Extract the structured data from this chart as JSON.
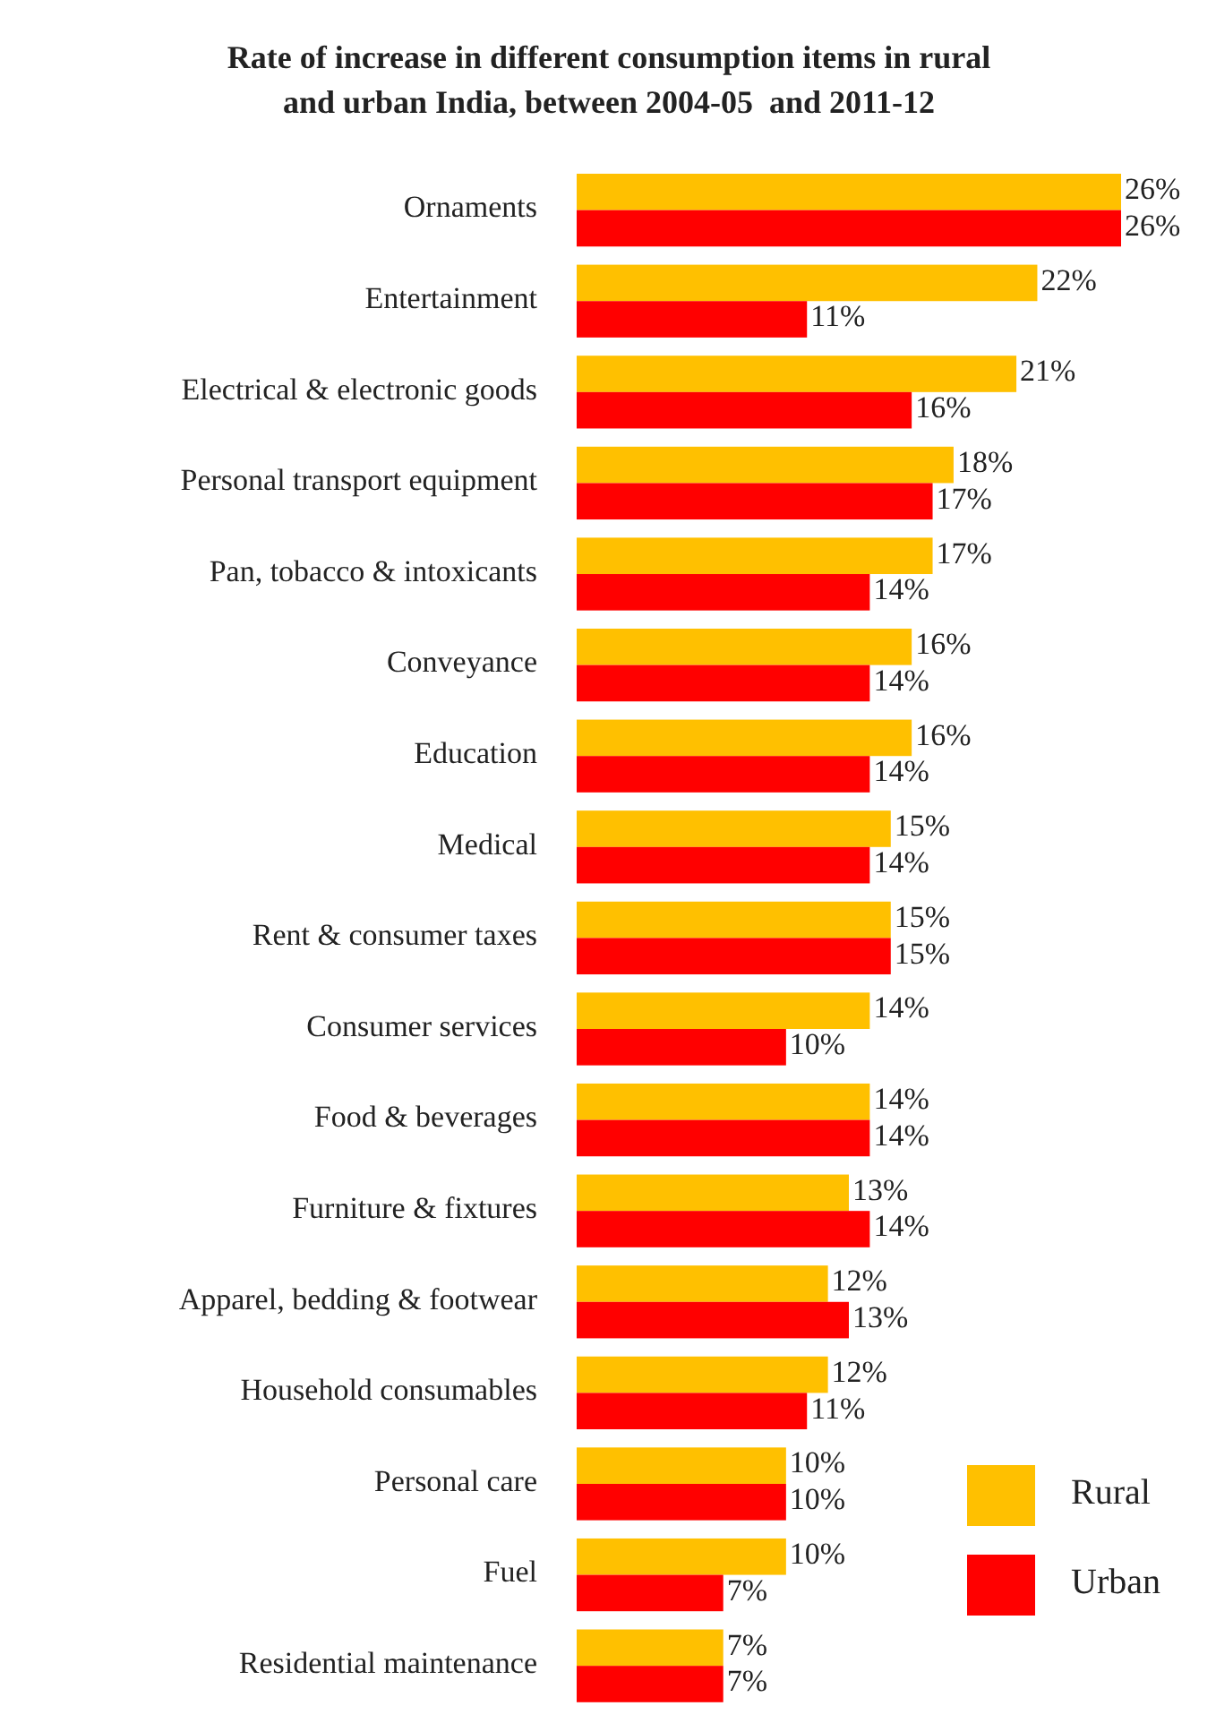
{
  "chart_data": {
    "type": "bar",
    "orientation": "horizontal",
    "title": "Rate of increase in different consumption items in rural and urban India, between 2004-05  and 2011-12",
    "categories": [
      "Ornaments",
      "Entertainment",
      "Electrical & electronic goods",
      "Personal transport equipment",
      "Pan, tobacco & intoxicants",
      "Conveyance",
      "Education",
      "Medical",
      "Rent & consumer taxes",
      "Consumer services",
      "Food & beverages",
      "Furniture & fixtures",
      "Apparel, bedding & footwear",
      "Household consumables",
      "Personal care",
      "Fuel",
      "Residential maintenance"
    ],
    "series": [
      {
        "name": "Rural",
        "color": "#ffc000",
        "values": [
          26,
          22,
          21,
          18,
          17,
          16,
          16,
          15,
          15,
          14,
          14,
          13,
          12,
          12,
          10,
          10,
          7
        ],
        "value_labels": [
          "26%",
          "22%",
          "21%",
          "18%",
          "17%",
          "16%",
          "16%",
          "15%",
          "15%",
          "14%",
          "14%",
          "13%",
          "12%",
          "12%",
          "10%",
          "10%",
          "7%"
        ]
      },
      {
        "name": "Urban",
        "color": "#ff0000",
        "values": [
          26,
          11,
          16,
          17,
          14,
          14,
          14,
          14,
          15,
          10,
          14,
          14,
          13,
          11,
          10,
          7,
          7
        ],
        "value_labels": [
          "26%",
          "11%",
          "16%",
          "17%",
          "14%",
          "14%",
          "14%",
          "14%",
          "15%",
          "10%",
          "14%",
          "14%",
          "13%",
          "11%",
          "10%",
          "7%",
          "7%"
        ]
      }
    ],
    "legend": "bottom right",
    "grid": false
  }
}
